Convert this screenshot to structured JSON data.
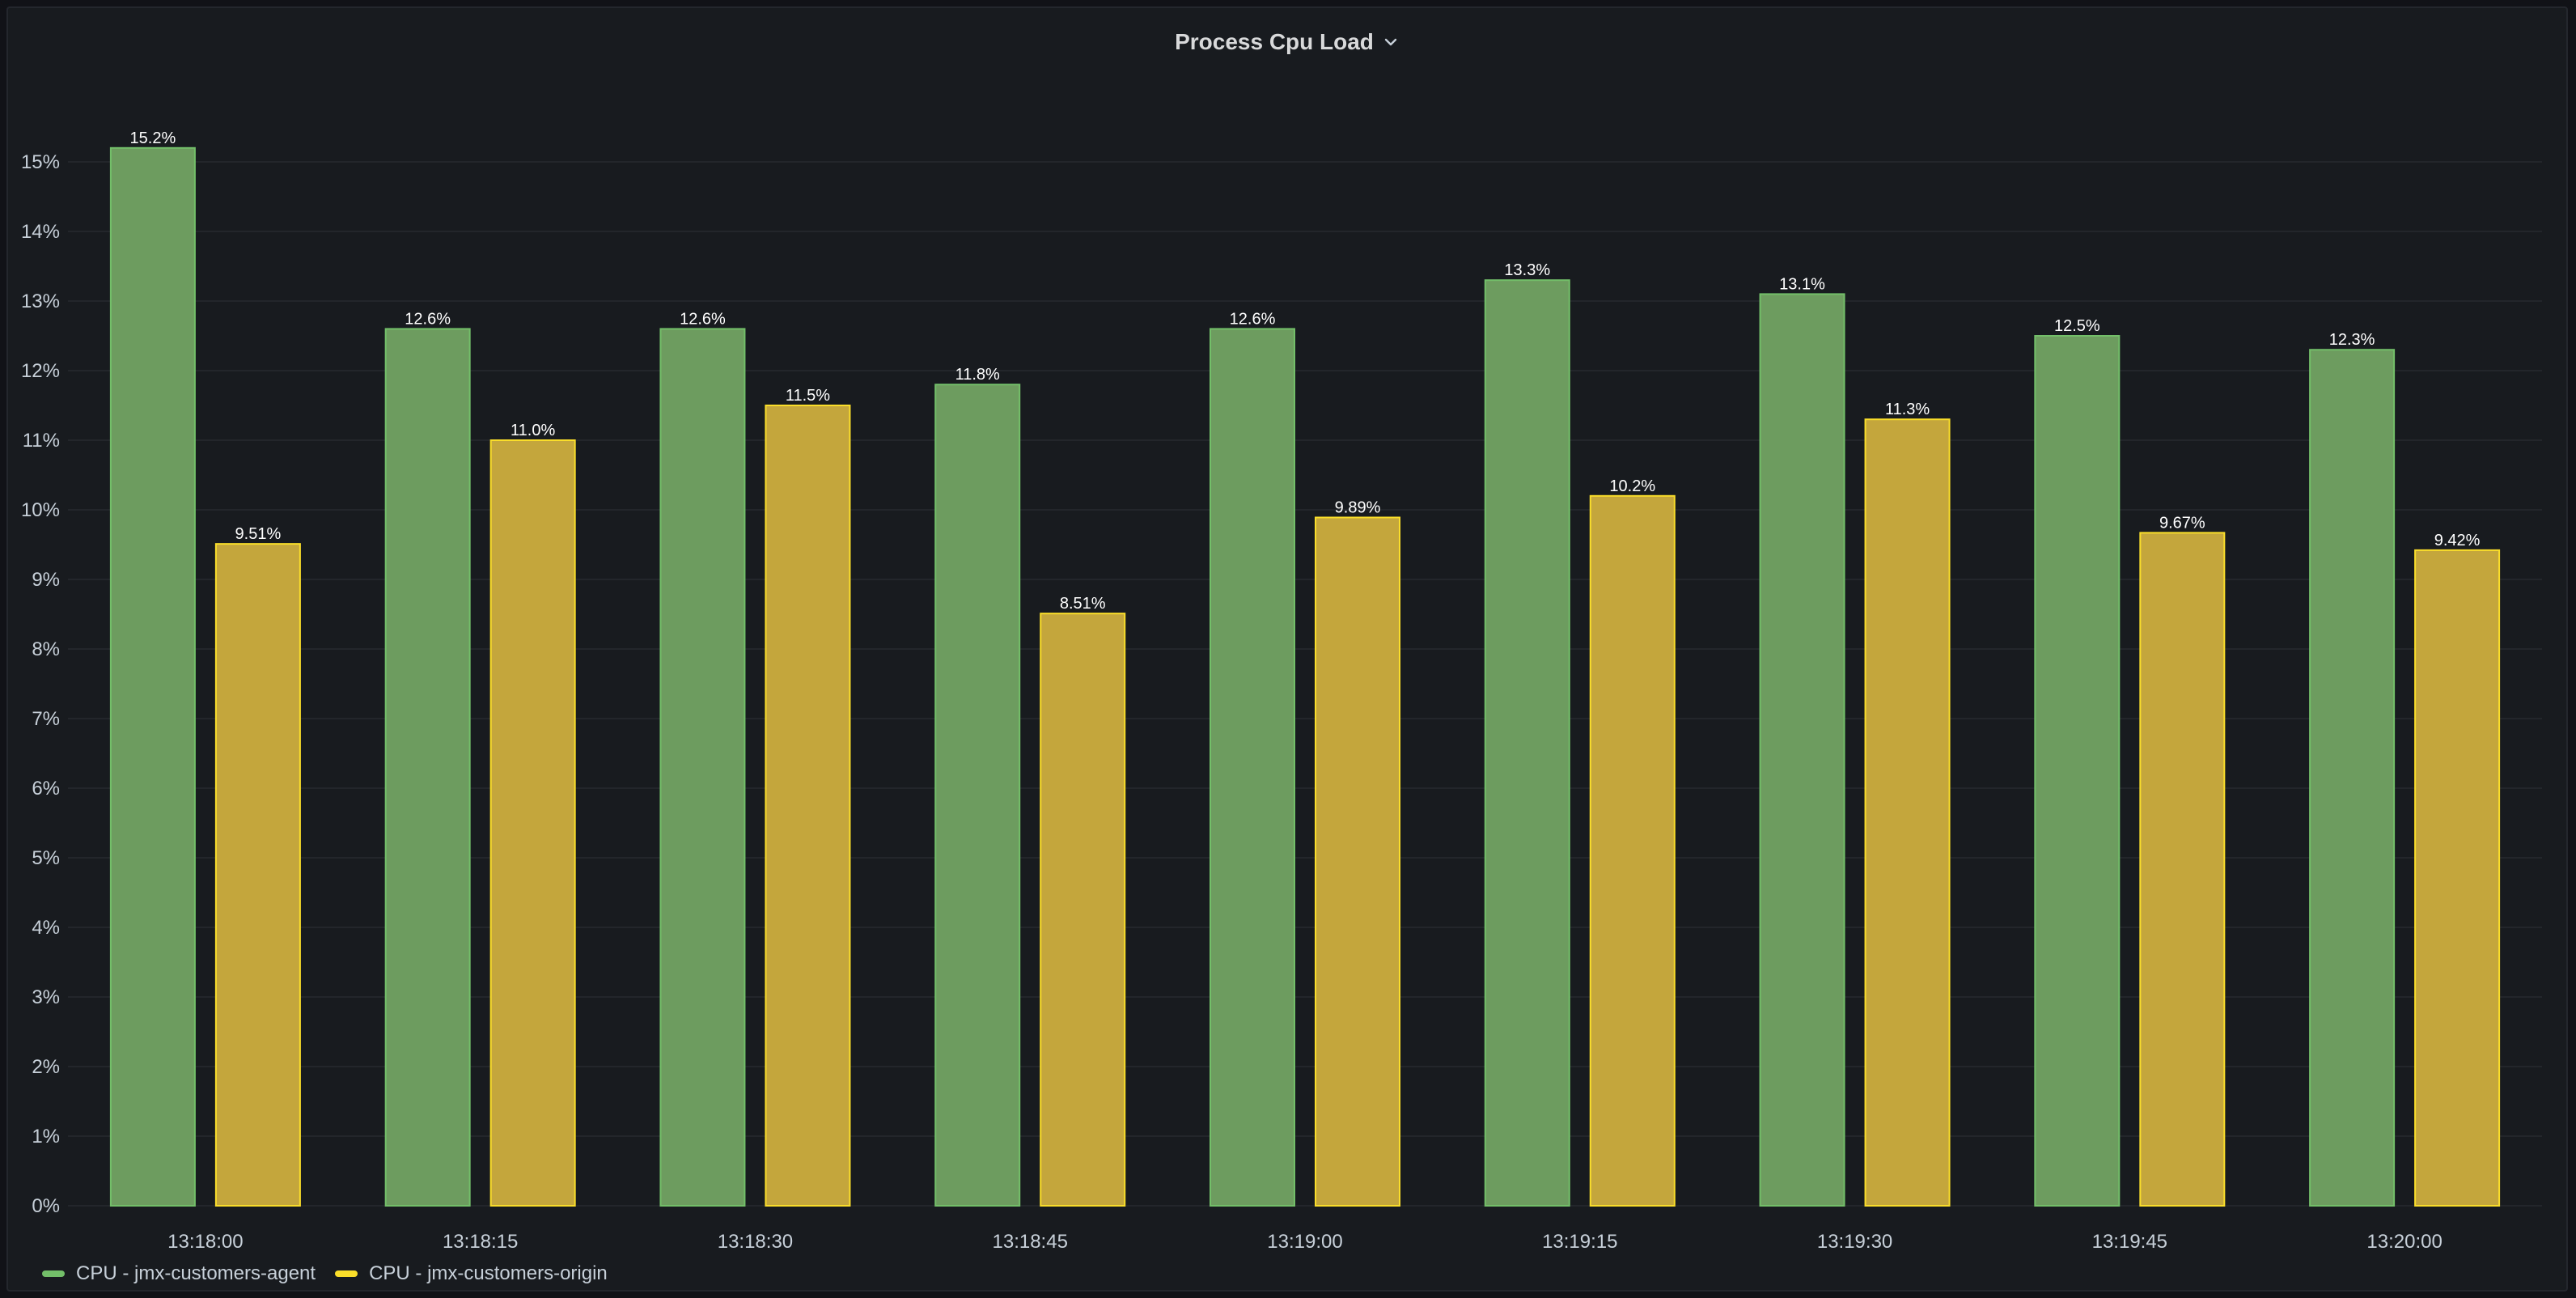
{
  "panel": {
    "title": "Process Cpu Load",
    "menu_icon": "chevron-down-icon"
  },
  "chart_data": {
    "type": "bar",
    "categories": [
      "13:18:00",
      "13:18:15",
      "13:18:30",
      "13:18:45",
      "13:19:00",
      "13:19:15",
      "13:19:30",
      "13:19:45",
      "13:20:00"
    ],
    "series": [
      {
        "name": "CPU - jmx-customers-agent",
        "color": "#73bf69",
        "values": [
          15.2,
          12.6,
          12.6,
          11.8,
          12.6,
          13.3,
          13.1,
          12.5,
          12.3
        ],
        "labels": [
          "15.2%",
          "12.6%",
          "12.6%",
          "11.8%",
          "12.6%",
          "13.3%",
          "13.1%",
          "12.5%",
          "12.3%"
        ]
      },
      {
        "name": "CPU - jmx-customers-origin",
        "color": "#fade2a",
        "values": [
          9.51,
          11.0,
          11.5,
          8.51,
          9.89,
          10.2,
          11.3,
          9.67,
          9.42
        ],
        "labels": [
          "9.51%",
          "11.0%",
          "11.5%",
          "8.51%",
          "9.89%",
          "10.2%",
          "11.3%",
          "9.67%",
          "9.42%"
        ]
      }
    ],
    "y_ticks": [
      "0%",
      "1%",
      "2%",
      "3%",
      "4%",
      "5%",
      "6%",
      "7%",
      "8%",
      "9%",
      "10%",
      "11%",
      "12%",
      "13%",
      "14%",
      "15%"
    ],
    "ylim": [
      0,
      15
    ],
    "grid": true,
    "legend_position": "bottom-left",
    "fill_colors": {
      "agent": "#6d9c5f",
      "origin": "#c4a63c"
    }
  }
}
